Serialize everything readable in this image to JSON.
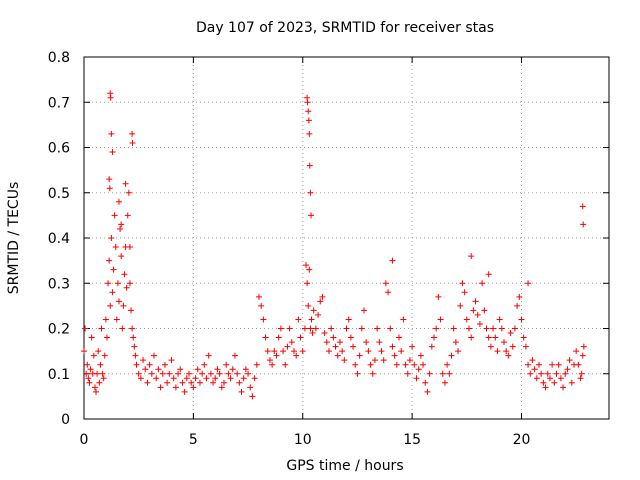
{
  "chart_data": {
    "type": "scatter",
    "title": "Day 107 of 2023, SRMTID for receiver stas",
    "xlabel": "GPS time / hours",
    "ylabel": "SRMTID / TECUs",
    "xlim": [
      0,
      24
    ],
    "ylim": [
      0,
      0.8
    ],
    "xticks": [
      0,
      5,
      10,
      15,
      20
    ],
    "xtick_labels": [
      "0",
      "5",
      "10",
      "15",
      "20"
    ],
    "yticks": [
      0,
      0.1,
      0.2,
      0.3,
      0.4,
      0.5,
      0.6,
      0.7,
      0.8
    ],
    "ytick_labels": [
      "0",
      "0.1",
      "0.2",
      "0.3",
      "0.4",
      "0.5",
      "0.6",
      "0.7",
      "0.8"
    ],
    "grid": true,
    "marker": "+",
    "series": [
      {
        "name": "stas",
        "color": "#ff0000",
        "x": [
          0.0,
          0.05,
          0.1,
          0.15,
          0.2,
          0.25,
          0.3,
          0.35,
          0.4,
          0.45,
          0.5,
          0.55,
          0.6,
          0.65,
          0.7,
          0.75,
          0.8,
          0.85,
          0.9,
          0.95,
          1.0,
          1.05,
          1.1,
          1.15,
          1.2,
          1.25,
          1.3,
          1.35,
          1.4,
          1.45,
          1.5,
          1.55,
          1.6,
          1.65,
          1.7,
          1.75,
          1.8,
          1.85,
          1.9,
          1.95,
          2.0,
          2.05,
          2.1,
          2.15,
          2.2,
          2.25,
          2.3,
          2.35,
          2.4,
          2.5,
          2.6,
          2.7,
          2.8,
          2.9,
          3.0,
          3.1,
          3.2,
          3.3,
          3.4,
          3.5,
          3.6,
          3.7,
          3.8,
          3.9,
          4.0,
          4.1,
          4.2,
          4.3,
          4.4,
          4.5,
          4.6,
          4.7,
          4.8,
          4.9,
          5.0,
          5.1,
          5.2,
          5.3,
          5.4,
          5.5,
          5.6,
          5.7,
          5.8,
          5.9,
          6.0,
          6.1,
          6.2,
          6.3,
          6.4,
          6.5,
          6.6,
          6.7,
          6.8,
          6.9,
          7.0,
          7.1,
          7.2,
          7.3,
          7.4,
          7.5,
          7.6,
          7.7,
          7.8,
          7.9,
          8.0,
          8.1,
          8.2,
          8.3,
          8.4,
          8.5,
          8.6,
          8.7,
          8.8,
          8.9,
          9.0,
          9.1,
          9.2,
          9.3,
          9.4,
          9.5,
          9.6,
          9.7,
          9.8,
          9.9,
          10.0,
          10.1,
          10.15,
          10.2,
          10.25,
          10.3,
          10.35,
          10.4,
          10.45,
          10.5,
          10.6,
          10.7,
          10.8,
          10.9,
          11.0,
          11.1,
          11.2,
          11.3,
          11.4,
          11.5,
          11.6,
          11.7,
          11.8,
          11.9,
          12.0,
          12.1,
          12.2,
          12.3,
          12.4,
          12.5,
          12.6,
          12.7,
          12.8,
          12.9,
          13.0,
          13.1,
          13.2,
          13.3,
          13.4,
          13.5,
          13.6,
          13.7,
          13.8,
          13.9,
          14.0,
          14.1,
          14.2,
          14.3,
          14.4,
          14.5,
          14.6,
          14.7,
          14.8,
          14.9,
          15.0,
          15.1,
          15.2,
          15.3,
          15.4,
          15.5,
          15.6,
          15.7,
          15.8,
          15.9,
          16.0,
          16.1,
          16.2,
          16.3,
          16.4,
          16.5,
          16.6,
          16.7,
          16.8,
          16.9,
          17.0,
          17.1,
          17.2,
          17.3,
          17.4,
          17.5,
          17.6,
          17.7,
          17.8,
          17.9,
          18.0,
          18.1,
          18.2,
          18.3,
          18.4,
          18.5,
          18.6,
          18.7,
          18.8,
          18.9,
          19.0,
          19.1,
          19.2,
          19.3,
          19.4,
          19.5,
          19.6,
          19.7,
          19.8,
          19.9,
          20.0,
          20.1,
          20.2,
          20.3,
          20.4,
          20.5,
          20.6,
          20.7,
          20.8,
          20.9,
          21.0,
          21.1,
          21.2,
          21.3,
          21.4,
          21.5,
          21.6,
          21.7,
          21.8,
          21.9,
          22.0,
          22.1,
          22.2,
          22.3,
          22.4,
          22.5,
          22.6,
          22.7,
          22.75,
          22.8,
          22.85,
          1.2,
          1.22,
          1.25,
          1.3,
          1.15,
          1.18,
          2.2,
          2.22,
          10.2,
          10.22,
          10.25,
          10.28,
          10.3,
          10.32,
          10.35,
          10.38,
          22.8,
          22.82,
          1.9,
          2.1,
          1.6,
          1.7,
          14.1,
          17.7,
          18.5,
          20.3
        ],
        "y": [
          0.15,
          0.2,
          0.1,
          0.12,
          0.09,
          0.08,
          0.11,
          0.18,
          0.1,
          0.14,
          0.07,
          0.06,
          0.1,
          0.15,
          0.08,
          0.12,
          0.2,
          0.1,
          0.09,
          0.14,
          0.22,
          0.18,
          0.3,
          0.35,
          0.25,
          0.4,
          0.28,
          0.33,
          0.45,
          0.38,
          0.22,
          0.3,
          0.26,
          0.42,
          0.36,
          0.2,
          0.25,
          0.32,
          0.38,
          0.29,
          0.45,
          0.5,
          0.3,
          0.24,
          0.2,
          0.18,
          0.16,
          0.14,
          0.12,
          0.1,
          0.09,
          0.13,
          0.11,
          0.08,
          0.12,
          0.1,
          0.14,
          0.09,
          0.11,
          0.07,
          0.1,
          0.12,
          0.08,
          0.1,
          0.13,
          0.09,
          0.07,
          0.1,
          0.11,
          0.08,
          0.06,
          0.09,
          0.1,
          0.08,
          0.07,
          0.09,
          0.11,
          0.08,
          0.1,
          0.12,
          0.09,
          0.14,
          0.1,
          0.08,
          0.09,
          0.11,
          0.1,
          0.07,
          0.08,
          0.12,
          0.1,
          0.09,
          0.11,
          0.14,
          0.1,
          0.08,
          0.06,
          0.09,
          0.11,
          0.1,
          0.07,
          0.05,
          0.09,
          0.12,
          0.27,
          0.25,
          0.22,
          0.18,
          0.15,
          0.13,
          0.12,
          0.15,
          0.14,
          0.18,
          0.2,
          0.15,
          0.12,
          0.16,
          0.2,
          0.17,
          0.15,
          0.14,
          0.22,
          0.18,
          0.15,
          0.2,
          0.34,
          0.3,
          0.25,
          0.33,
          0.2,
          0.22,
          0.19,
          0.24,
          0.2,
          0.23,
          0.26,
          0.27,
          0.19,
          0.17,
          0.15,
          0.2,
          0.18,
          0.16,
          0.14,
          0.17,
          0.15,
          0.13,
          0.2,
          0.22,
          0.18,
          0.16,
          0.12,
          0.1,
          0.14,
          0.2,
          0.24,
          0.17,
          0.15,
          0.12,
          0.1,
          0.13,
          0.2,
          0.17,
          0.15,
          0.13,
          0.3,
          0.28,
          0.2,
          0.16,
          0.14,
          0.12,
          0.18,
          0.15,
          0.22,
          0.12,
          0.1,
          0.13,
          0.16,
          0.12,
          0.09,
          0.11,
          0.14,
          0.12,
          0.08,
          0.06,
          0.1,
          0.16,
          0.18,
          0.2,
          0.27,
          0.22,
          0.1,
          0.08,
          0.12,
          0.1,
          0.14,
          0.2,
          0.17,
          0.15,
          0.25,
          0.3,
          0.28,
          0.22,
          0.2,
          0.18,
          0.24,
          0.26,
          0.23,
          0.21,
          0.3,
          0.24,
          0.2,
          0.18,
          0.16,
          0.2,
          0.18,
          0.15,
          0.22,
          0.2,
          0.17,
          0.15,
          0.14,
          0.19,
          0.16,
          0.2,
          0.25,
          0.27,
          0.22,
          0.18,
          0.16,
          0.12,
          0.1,
          0.13,
          0.11,
          0.09,
          0.12,
          0.1,
          0.08,
          0.07,
          0.1,
          0.09,
          0.12,
          0.08,
          0.1,
          0.12,
          0.09,
          0.07,
          0.1,
          0.11,
          0.13,
          0.08,
          0.12,
          0.15,
          0.12,
          0.09,
          0.1,
          0.14,
          0.16,
          0.72,
          0.71,
          0.63,
          0.59,
          0.53,
          0.51,
          0.63,
          0.61,
          0.71,
          0.7,
          0.68,
          0.66,
          0.63,
          0.56,
          0.5,
          0.45,
          0.47,
          0.43,
          0.52,
          0.38,
          0.48,
          0.43,
          0.35,
          0.36,
          0.32,
          0.3
        ]
      }
    ]
  }
}
